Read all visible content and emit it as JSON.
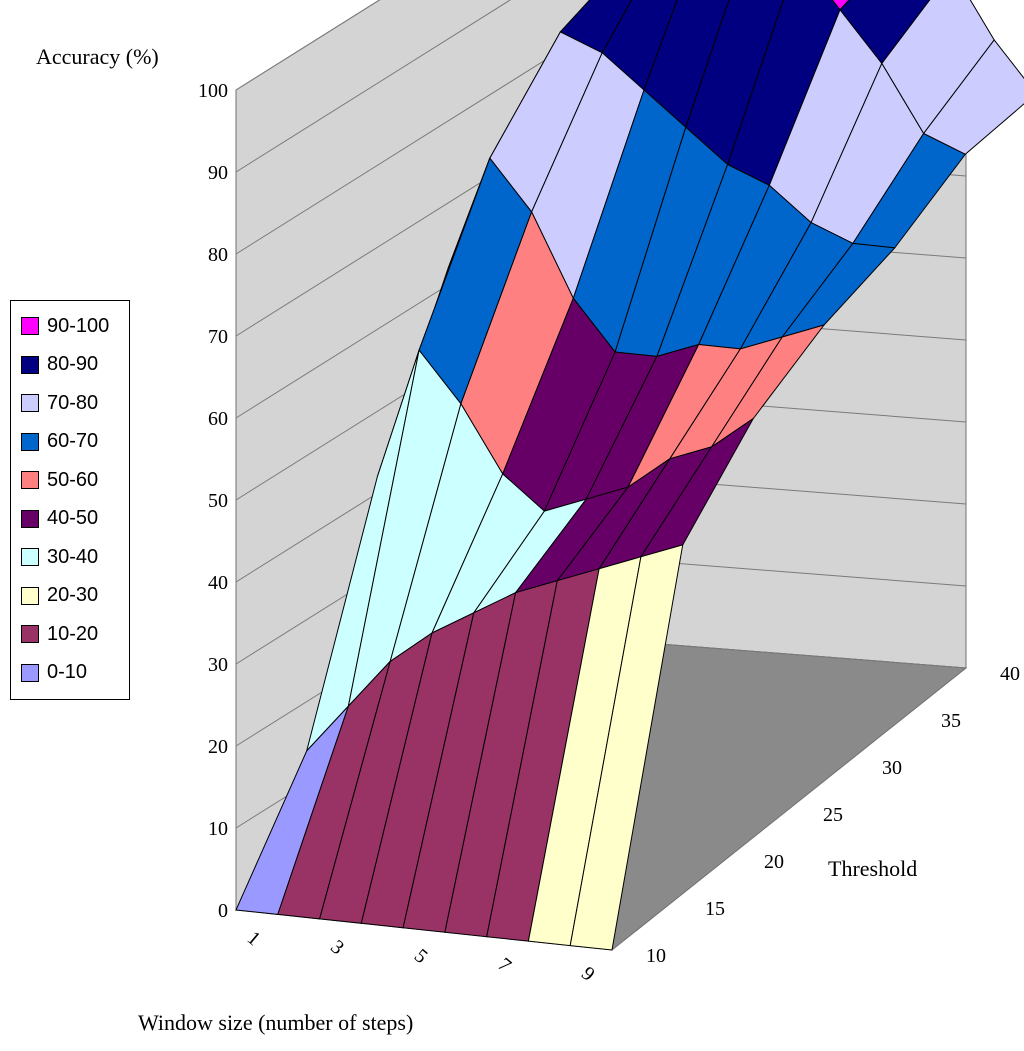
{
  "chart_data": {
    "type": "surface3d",
    "title": "",
    "zlabel": "Accuracy (%)",
    "xlabel": "Window size (number of steps)",
    "ylabel": "Threshold",
    "zlim": [
      0,
      100
    ],
    "z_ticks": [
      "0",
      "10",
      "20",
      "30",
      "40",
      "50",
      "60",
      "70",
      "80",
      "90",
      "100"
    ],
    "x_ticks": [
      "1",
      "3",
      "5",
      "7",
      "9"
    ],
    "y_ticks": [
      "10",
      "15",
      "20",
      "25",
      "30",
      "35",
      "40"
    ],
    "legend_position": "left",
    "bands": [
      {
        "label": "90-100",
        "color": "#ff00ff"
      },
      {
        "label": "80-90",
        "color": "#000080"
      },
      {
        "label": "70-80",
        "color": "#ccccff"
      },
      {
        "label": "60-70",
        "color": "#0066cc"
      },
      {
        "label": "50-60",
        "color": "#ff8080"
      },
      {
        "label": "40-50",
        "color": "#660066"
      },
      {
        "label": "30-40",
        "color": "#ccffff"
      },
      {
        "label": "20-30",
        "color": "#ffffcc"
      },
      {
        "label": "10-20",
        "color": "#993366"
      },
      {
        "label": "0-10",
        "color": "#9999ff"
      }
    ],
    "window_sizes": [
      1,
      2,
      3,
      4,
      5,
      6,
      7,
      8,
      9,
      10
    ],
    "thresholds": [
      10,
      15,
      20,
      25,
      30,
      35,
      40
    ],
    "accuracy_by_window": [
      [
        0,
        14,
        42,
        62,
        72,
        80,
        82
      ],
      [
        0,
        20,
        58,
        76,
        86,
        90,
        92
      ],
      [
        0,
        26,
        52,
        70,
        84,
        94,
        96
      ],
      [
        0,
        30,
        44,
        60,
        80,
        98,
        99
      ],
      [
        0,
        33,
        40,
        54,
        76,
        96,
        97
      ],
      [
        0,
        36,
        42,
        54,
        72,
        92,
        94
      ],
      [
        0,
        38,
        44,
        56,
        70,
        86,
        90
      ],
      [
        0,
        40,
        48,
        56,
        66,
        80,
        86
      ],
      [
        0,
        42,
        50,
        58,
        64,
        72,
        78
      ],
      [
        0,
        44,
        54,
        60,
        64,
        70,
        72
      ]
    ]
  }
}
